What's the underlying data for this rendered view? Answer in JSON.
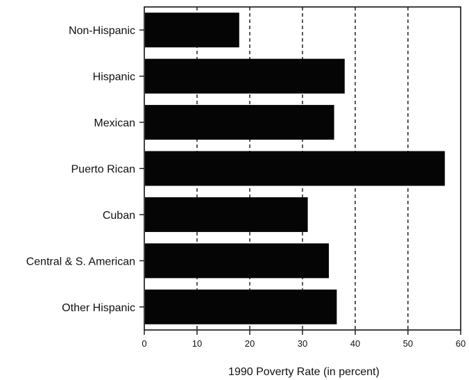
{
  "chart_data": {
    "type": "bar",
    "orientation": "horizontal",
    "categories": [
      "Non-Hispanic",
      "Hispanic",
      "Mexican",
      "Puerto Rican",
      "Cuban",
      "Central & S. American",
      "Other Hispanic"
    ],
    "values": [
      18,
      38,
      36,
      57,
      31,
      35,
      36.5
    ],
    "xlabel": "1990 Poverty Rate (in percent)",
    "ylabel": "",
    "xlim": [
      0,
      60
    ],
    "xticks": [
      0,
      10,
      20,
      30,
      40,
      50,
      60
    ],
    "xtick_labels": [
      "0",
      "10",
      "20",
      "30",
      "40",
      "50",
      "60"
    ],
    "grid": "vertical dashed",
    "colors": {
      "bar": "#050505",
      "frame": "#111111",
      "background": "#ffffff"
    }
  }
}
